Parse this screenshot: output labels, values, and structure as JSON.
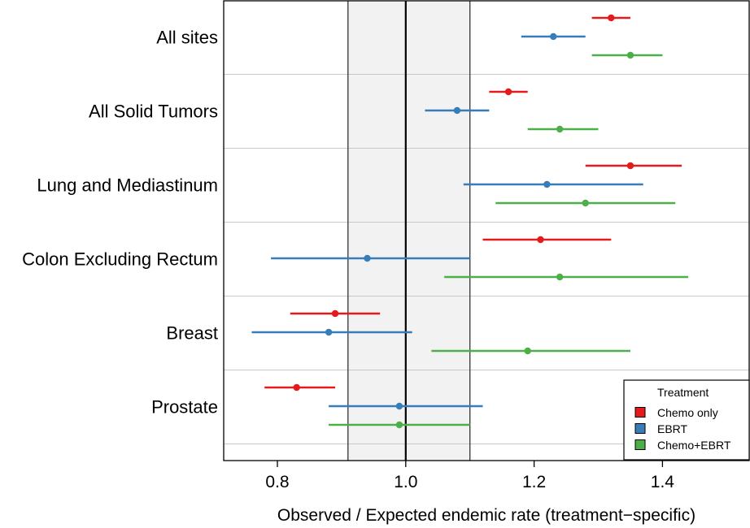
{
  "chart_data": {
    "type": "forest",
    "xlabel": "Observed / Expected endemic rate (treatment−specific)",
    "xlim": [
      0.72,
      1.53
    ],
    "xticks": [
      0.8,
      1.0,
      1.2,
      1.4
    ],
    "xtick_labels": [
      "0.8",
      "1.0",
      "1.2",
      "1.4"
    ],
    "reference_line": 1.0,
    "reference_band": [
      0.91,
      1.1
    ],
    "categories": [
      "All sites",
      "All Solid Tumors",
      "Lung and Mediastinum",
      "Colon Excluding Rectum",
      "Breast",
      "Prostate"
    ],
    "series": [
      {
        "name": "Chemo only",
        "color": "#e41a1c",
        "estimate": [
          1.32,
          1.16,
          1.35,
          1.21,
          0.89,
          0.83
        ],
        "lower": [
          1.29,
          1.13,
          1.28,
          1.12,
          0.82,
          0.78
        ],
        "upper": [
          1.35,
          1.19,
          1.43,
          1.32,
          0.96,
          0.89
        ]
      },
      {
        "name": "EBRT",
        "color": "#377eb8",
        "estimate": [
          1.23,
          1.08,
          1.22,
          0.94,
          0.88,
          0.99
        ],
        "lower": [
          1.18,
          1.03,
          1.09,
          0.79,
          0.76,
          0.88
        ],
        "upper": [
          1.28,
          1.13,
          1.37,
          1.1,
          1.01,
          1.12
        ]
      },
      {
        "name": "Chemo+EBRT",
        "color": "#4daf4a",
        "estimate": [
          1.35,
          1.24,
          1.28,
          1.24,
          1.19,
          0.99
        ],
        "lower": [
          1.29,
          1.19,
          1.14,
          1.06,
          1.04,
          0.88
        ],
        "upper": [
          1.4,
          1.3,
          1.42,
          1.44,
          1.35,
          1.1
        ]
      }
    ],
    "legend": {
      "title": "Treatment",
      "position": "bottom-right"
    }
  }
}
